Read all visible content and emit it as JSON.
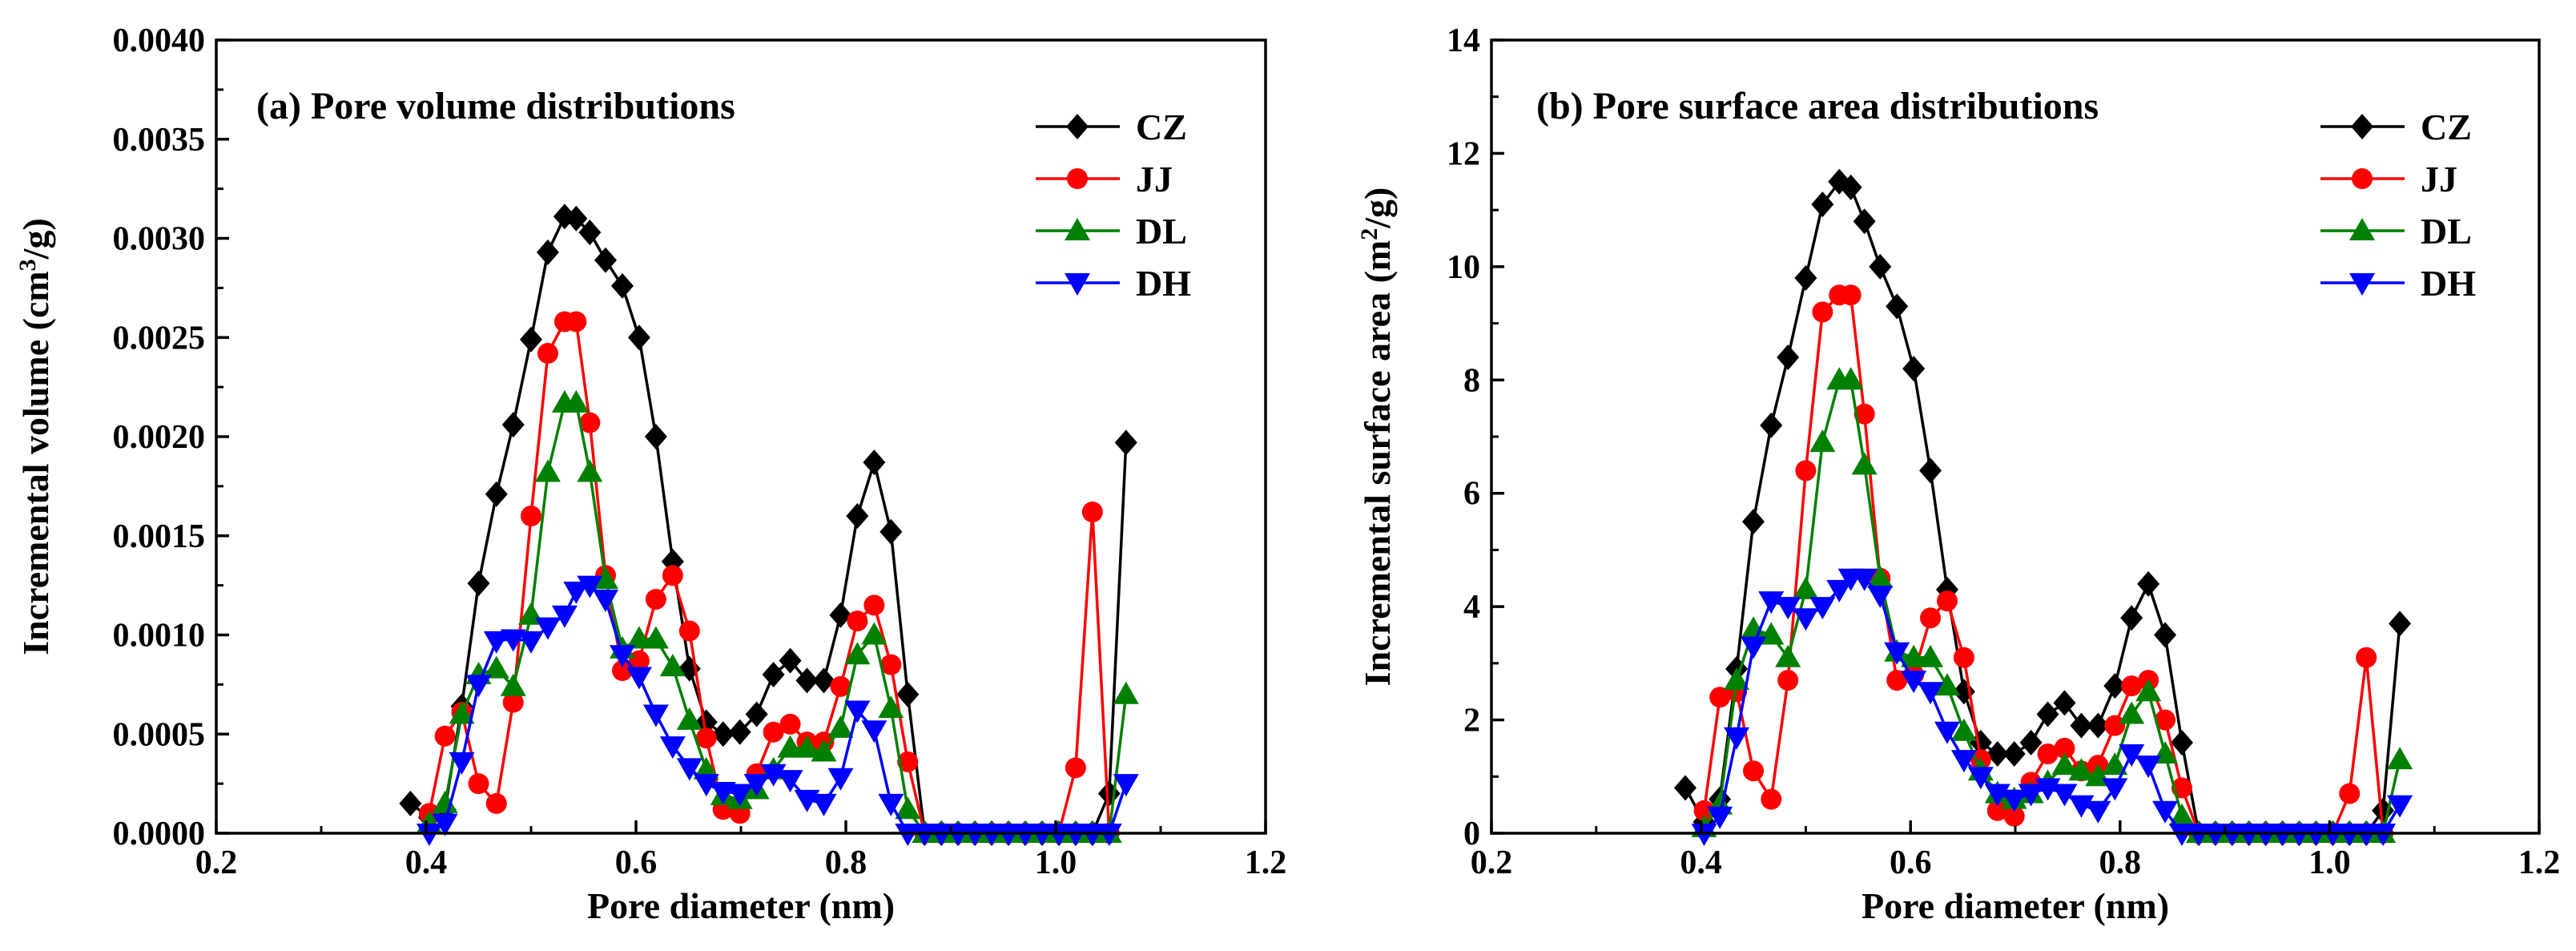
{
  "chart_data": [
    {
      "type": "line",
      "title": "(a) Pore volume distributions",
      "xlabel": "Pore diameter (nm)",
      "ylabel_parts": [
        "Incremental volume (cm",
        "3",
        "/g)"
      ],
      "xlim": [
        0.2,
        1.2
      ],
      "ylim": [
        0,
        0.004
      ],
      "xticks": [
        0.2,
        0.4,
        0.6,
        0.8,
        1.0,
        1.2
      ],
      "yticks": [
        0,
        0.0005,
        0.001,
        0.0015,
        0.002,
        0.0025,
        0.003,
        0.0035,
        0.004
      ],
      "xtick_labels": [
        "0.2",
        "0.4",
        "0.6",
        "0.8",
        "1.0",
        "1.2"
      ],
      "ytick_labels": [
        "0.0000",
        "0.0005",
        "0.0010",
        "0.0015",
        "0.0020",
        "0.0025",
        "0.0030",
        "0.0035",
        "0.0040"
      ],
      "legend_position": "top-right",
      "series": [
        {
          "name": "CZ",
          "color": "#000000",
          "marker": "diamond",
          "x": [
            0.385,
            0.403,
            0.418,
            0.434,
            0.45,
            0.467,
            0.483,
            0.5,
            0.516,
            0.532,
            0.543,
            0.556,
            0.571,
            0.587,
            0.603,
            0.619,
            0.635,
            0.651,
            0.667,
            0.683,
            0.699,
            0.715,
            0.731,
            0.747,
            0.763,
            0.779,
            0.795,
            0.811,
            0.827,
            0.843,
            0.859,
            0.875,
            0.891,
            0.907,
            0.923,
            0.939,
            0.955,
            0.971,
            0.987,
            1.003,
            1.019,
            1.035,
            1.051,
            1.067
          ],
          "y": [
            0.00015,
            8e-05,
            0.00012,
            0.00064,
            0.00126,
            0.00171,
            0.00206,
            0.00249,
            0.00293,
            0.00311,
            0.0031,
            0.00303,
            0.00289,
            0.00276,
            0.0025,
            0.002,
            0.00137,
            0.00083,
            0.00056,
            0.0005,
            0.00051,
            0.0006,
            0.0008,
            0.00087,
            0.00077,
            0.00077,
            0.0011,
            0.0016,
            0.00187,
            0.00152,
            0.0007,
            0.0,
            0.0,
            0.0,
            0.0,
            0.0,
            0.0,
            0.0,
            0.0,
            0.0,
            0.0,
            0.0,
            0.0002,
            0.00197
          ]
        },
        {
          "name": "JJ",
          "color": "#ff0000",
          "marker": "circle",
          "x": [
            0.403,
            0.418,
            0.434,
            0.45,
            0.467,
            0.483,
            0.5,
            0.516,
            0.532,
            0.543,
            0.556,
            0.571,
            0.587,
            0.603,
            0.619,
            0.635,
            0.651,
            0.667,
            0.683,
            0.699,
            0.715,
            0.731,
            0.747,
            0.763,
            0.779,
            0.795,
            0.811,
            0.827,
            0.843,
            0.859,
            0.875,
            0.891,
            0.907,
            0.923,
            0.939,
            0.955,
            0.971,
            0.987,
            1.003,
            1.019,
            1.035,
            1.051
          ],
          "y": [
            0.0001,
            0.00049,
            0.00061,
            0.00025,
            0.00015,
            0.00066,
            0.0016,
            0.00242,
            0.00258,
            0.00258,
            0.00207,
            0.0013,
            0.00082,
            0.00087,
            0.00118,
            0.0013,
            0.00102,
            0.00048,
            0.00012,
            0.0001,
            0.0003,
            0.00051,
            0.00055,
            0.00046,
            0.00046,
            0.00074,
            0.00107,
            0.00115,
            0.00085,
            0.00036,
            0.0,
            0.0,
            0.0,
            0.0,
            0.0,
            0.0,
            0.0,
            0.0,
            0.0,
            0.00033,
            0.00162,
            0.0
          ]
        },
        {
          "name": "DL",
          "color": "#008000",
          "marker": "triangle-up",
          "x": [
            0.403,
            0.418,
            0.434,
            0.45,
            0.467,
            0.483,
            0.5,
            0.516,
            0.532,
            0.543,
            0.556,
            0.571,
            0.587,
            0.603,
            0.619,
            0.635,
            0.651,
            0.667,
            0.683,
            0.699,
            0.715,
            0.731,
            0.747,
            0.763,
            0.779,
            0.795,
            0.811,
            0.827,
            0.843,
            0.859,
            0.875,
            0.891,
            0.907,
            0.923,
            0.939,
            0.955,
            0.971,
            0.987,
            1.003,
            1.019,
            1.035,
            1.051,
            1.067
          ],
          "y": [
            5e-05,
            0.00015,
            0.0006,
            0.0008,
            0.00083,
            0.00074,
            0.0011,
            0.00182,
            0.00217,
            0.00217,
            0.00182,
            0.00128,
            0.00093,
            0.00098,
            0.00098,
            0.00084,
            0.00057,
            0.00032,
            0.00019,
            0.00017,
            0.00022,
            0.00032,
            0.00043,
            0.00043,
            0.00041,
            0.00053,
            0.0009,
            0.001,
            0.00063,
            0.00012,
            0.0,
            0.0,
            0.0,
            0.0,
            0.0,
            0.0,
            0.0,
            0.0,
            0.0,
            0.0,
            0.0,
            0.0,
            0.0007
          ]
        },
        {
          "name": "DH",
          "color": "#0000ff",
          "marker": "triangle-down",
          "x": [
            0.403,
            0.418,
            0.434,
            0.45,
            0.467,
            0.483,
            0.5,
            0.516,
            0.532,
            0.543,
            0.556,
            0.571,
            0.587,
            0.603,
            0.619,
            0.635,
            0.651,
            0.667,
            0.683,
            0.699,
            0.715,
            0.731,
            0.747,
            0.763,
            0.779,
            0.795,
            0.811,
            0.827,
            0.843,
            0.859,
            0.875,
            0.891,
            0.907,
            0.923,
            0.939,
            0.955,
            0.971,
            0.987,
            1.003,
            1.019,
            1.035,
            1.051,
            1.067
          ],
          "y": [
            0.0,
            5e-05,
            0.00036,
            0.00075,
            0.00097,
            0.00098,
            0.00097,
            0.00104,
            0.0011,
            0.00122,
            0.00125,
            0.00118,
            0.0009,
            0.00079,
            0.0006,
            0.00044,
            0.00033,
            0.00025,
            0.00021,
            0.0002,
            0.00025,
            0.0003,
            0.00027,
            0.00017,
            0.00015,
            0.00028,
            0.00062,
            0.00052,
            0.00015,
            0.0,
            0.0,
            0.0,
            0.0,
            0.0,
            0.0,
            0.0,
            0.0,
            0.0,
            0.0,
            0.0,
            0.0,
            0.0,
            0.00025
          ]
        }
      ]
    },
    {
      "type": "line",
      "title": "(b) Pore surface area distributions",
      "xlabel": "Pore diameter (nm)",
      "ylabel_parts": [
        "Incremental surface area (m",
        "2",
        "/g)"
      ],
      "xlim": [
        0.2,
        1.2
      ],
      "ylim": [
        0,
        14
      ],
      "xticks": [
        0.2,
        0.4,
        0.6,
        0.8,
        1.0,
        1.2
      ],
      "yticks": [
        0,
        2,
        4,
        6,
        8,
        10,
        12,
        14
      ],
      "xtick_labels": [
        "0.2",
        "0.4",
        "0.6",
        "0.8",
        "1.0",
        "1.2"
      ],
      "ytick_labels": [
        "0",
        "2",
        "4",
        "6",
        "8",
        "10",
        "12",
        "14"
      ],
      "legend_position": "top-right",
      "series": [
        {
          "name": "CZ",
          "color": "#000000",
          "marker": "diamond",
          "x": [
            0.385,
            0.403,
            0.418,
            0.434,
            0.45,
            0.467,
            0.483,
            0.5,
            0.516,
            0.532,
            0.543,
            0.556,
            0.571,
            0.587,
            0.603,
            0.619,
            0.635,
            0.651,
            0.667,
            0.683,
            0.699,
            0.715,
            0.731,
            0.747,
            0.763,
            0.779,
            0.795,
            0.811,
            0.827,
            0.843,
            0.859,
            0.875,
            0.891,
            0.907,
            0.923,
            0.939,
            0.955,
            0.971,
            0.987,
            1.003,
            1.019,
            1.035,
            1.051,
            1.067
          ],
          "y": [
            0.8,
            0.2,
            0.6,
            2.9,
            5.5,
            7.2,
            8.4,
            9.8,
            11.1,
            11.5,
            11.4,
            10.8,
            10.0,
            9.3,
            8.2,
            6.4,
            4.3,
            2.5,
            1.6,
            1.4,
            1.4,
            1.6,
            2.1,
            2.3,
            1.9,
            1.9,
            2.6,
            3.8,
            4.4,
            3.5,
            1.6,
            0.0,
            0.0,
            0.0,
            0.0,
            0.0,
            0.0,
            0.0,
            0.0,
            0.0,
            0.0,
            0.0,
            0.4,
            3.7
          ]
        },
        {
          "name": "JJ",
          "color": "#ff0000",
          "marker": "circle",
          "x": [
            0.403,
            0.418,
            0.434,
            0.45,
            0.467,
            0.483,
            0.5,
            0.516,
            0.532,
            0.543,
            0.556,
            0.571,
            0.587,
            0.603,
            0.619,
            0.635,
            0.651,
            0.667,
            0.683,
            0.699,
            0.715,
            0.731,
            0.747,
            0.763,
            0.779,
            0.795,
            0.811,
            0.827,
            0.843,
            0.859,
            0.875,
            0.891,
            0.907,
            0.923,
            0.939,
            0.955,
            0.971,
            0.987,
            1.003,
            1.019,
            1.035,
            1.051
          ],
          "y": [
            0.4,
            2.4,
            2.5,
            1.1,
            0.6,
            2.7,
            6.4,
            9.2,
            9.5,
            9.5,
            7.4,
            4.5,
            2.7,
            2.8,
            3.8,
            4.1,
            3.1,
            1.3,
            0.4,
            0.3,
            0.9,
            1.4,
            1.5,
            1.1,
            1.2,
            1.9,
            2.6,
            2.7,
            2.0,
            0.8,
            0.0,
            0.0,
            0.0,
            0.0,
            0.0,
            0.0,
            0.0,
            0.0,
            0.0,
            0.7,
            3.1,
            0.0
          ]
        },
        {
          "name": "DL",
          "color": "#008000",
          "marker": "triangle-up",
          "x": [
            0.403,
            0.418,
            0.434,
            0.45,
            0.467,
            0.483,
            0.5,
            0.516,
            0.532,
            0.543,
            0.556,
            0.571,
            0.587,
            0.603,
            0.619,
            0.635,
            0.651,
            0.667,
            0.683,
            0.699,
            0.715,
            0.731,
            0.747,
            0.763,
            0.779,
            0.795,
            0.811,
            0.827,
            0.843,
            0.859,
            0.875,
            0.891,
            0.907,
            0.923,
            0.939,
            0.955,
            0.971,
            0.987,
            1.003,
            1.019,
            1.035,
            1.051,
            1.067
          ],
          "y": [
            0.1,
            0.5,
            2.7,
            3.6,
            3.5,
            3.1,
            4.3,
            6.9,
            8.0,
            8.0,
            6.5,
            4.5,
            3.2,
            3.1,
            3.1,
            2.6,
            1.8,
            1.1,
            0.7,
            0.6,
            0.7,
            0.9,
            1.2,
            1.1,
            1.0,
            1.2,
            2.1,
            2.5,
            1.4,
            0.3,
            0.0,
            0.0,
            0.0,
            0.0,
            0.0,
            0.0,
            0.0,
            0.0,
            0.0,
            0.0,
            0.0,
            0.0,
            1.3
          ]
        },
        {
          "name": "DH",
          "color": "#0000ff",
          "marker": "triangle-down",
          "x": [
            0.403,
            0.418,
            0.434,
            0.45,
            0.467,
            0.483,
            0.5,
            0.516,
            0.532,
            0.543,
            0.556,
            0.571,
            0.587,
            0.603,
            0.619,
            0.635,
            0.651,
            0.667,
            0.683,
            0.699,
            0.715,
            0.731,
            0.747,
            0.763,
            0.779,
            0.795,
            0.811,
            0.827,
            0.843,
            0.859,
            0.875,
            0.891,
            0.907,
            0.923,
            0.939,
            0.955,
            0.971,
            0.987,
            1.003,
            1.019,
            1.035,
            1.051,
            1.067
          ],
          "y": [
            0.0,
            0.3,
            1.7,
            3.3,
            4.1,
            4.0,
            3.8,
            4.0,
            4.3,
            4.5,
            4.5,
            4.2,
            3.2,
            2.7,
            2.5,
            1.8,
            1.3,
            1.0,
            0.7,
            0.6,
            0.7,
            0.8,
            0.7,
            0.5,
            0.4,
            0.8,
            1.4,
            1.2,
            0.4,
            0.0,
            0.0,
            0.0,
            0.0,
            0.0,
            0.0,
            0.0,
            0.0,
            0.0,
            0.0,
            0.0,
            0.0,
            0.0,
            0.5
          ]
        }
      ]
    }
  ]
}
